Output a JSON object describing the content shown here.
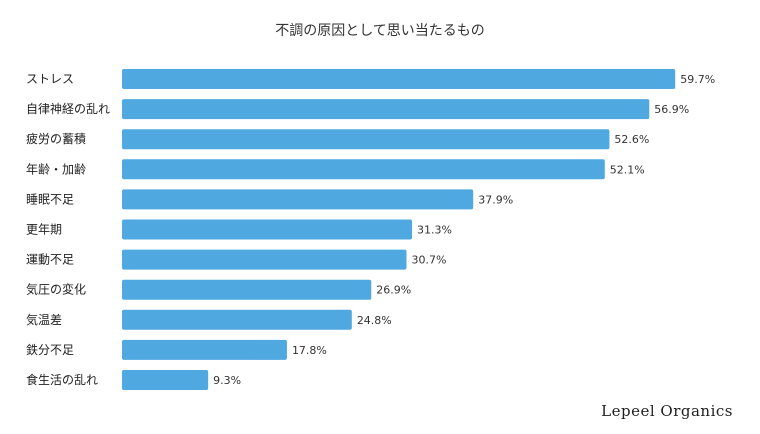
{
  "chart_data": {
    "type": "bar",
    "orientation": "horizontal",
    "title": "不調の原因として思い当たるもの",
    "categories": [
      "ストレス",
      "自律神経の乱れ",
      "疲労の蓄積",
      "年齢・加齢",
      "睡眠不足",
      "更年期",
      "運動不足",
      "気圧の変化",
      "気温差",
      "鉄分不足",
      "食生活の乱れ"
    ],
    "values": [
      59.7,
      56.9,
      52.6,
      52.1,
      37.9,
      31.3,
      30.7,
      26.9,
      24.8,
      17.8,
      9.3
    ],
    "value_labels": [
      "59.7%",
      "56.9%",
      "52.6%",
      "52.1%",
      "37.9%",
      "31.3%",
      "30.7%",
      "26.9%",
      "24.8%",
      "17.8%",
      "9.3%"
    ],
    "xlim": [
      0,
      60
    ],
    "grid": false,
    "bar_color": "#4fa8e0"
  },
  "brand": {
    "name": "Lepeel Organics"
  }
}
